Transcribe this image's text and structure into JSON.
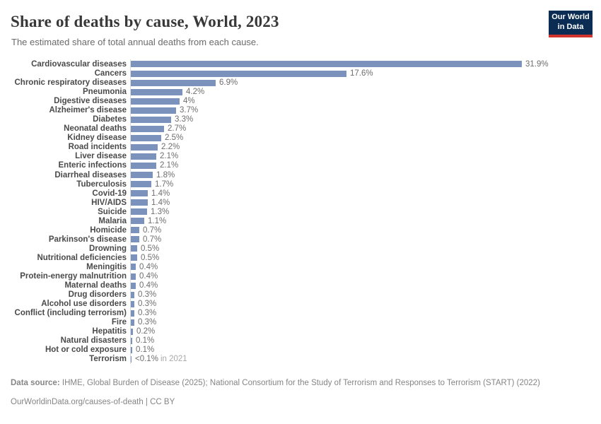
{
  "header": {
    "title": "Share of deaths by cause, World, 2023",
    "subtitle": "The estimated share of total annual deaths from each cause.",
    "logo": {
      "line1": "Our World",
      "line2": "in Data"
    }
  },
  "chart_data": {
    "type": "bar",
    "orientation": "horizontal",
    "title": "Share of deaths by cause, World, 2023",
    "xlabel": "",
    "ylabel": "",
    "unit": "%",
    "xlim": [
      0,
      31.9
    ],
    "grid": false,
    "legend": false,
    "bar_color": "#7b93bc",
    "categories": [
      "Cardiovascular diseases",
      "Cancers",
      "Chronic respiratory diseases",
      "Pneumonia",
      "Digestive diseases",
      "Alzheimer's disease",
      "Diabetes",
      "Neonatal deaths",
      "Kidney disease",
      "Road incidents",
      "Liver disease",
      "Enteric infections",
      "Diarrheal diseases",
      "Tuberculosis",
      "Covid-19",
      "HIV/AIDS",
      "Suicide",
      "Malaria",
      "Homicide",
      "Parkinson's disease",
      "Drowning",
      "Nutritional deficiencies",
      "Meningitis",
      "Protein-energy malnutrition",
      "Maternal deaths",
      "Drug disorders",
      "Alcohol use disorders",
      "Conflict (including terrorism)",
      "Fire",
      "Hepatitis",
      "Natural disasters",
      "Hot or cold exposure",
      "Terrorism"
    ],
    "values": [
      31.9,
      17.6,
      6.9,
      4.2,
      4,
      3.7,
      3.3,
      2.7,
      2.5,
      2.2,
      2.1,
      2.1,
      1.8,
      1.7,
      1.4,
      1.4,
      1.3,
      1.1,
      0.7,
      0.7,
      0.5,
      0.5,
      0.4,
      0.4,
      0.4,
      0.3,
      0.3,
      0.3,
      0.3,
      0.2,
      0.1,
      0.1,
      0.05
    ],
    "value_labels": [
      "31.9%",
      "17.6%",
      "6.9%",
      "4.2%",
      "4%",
      "3.7%",
      "3.3%",
      "2.7%",
      "2.5%",
      "2.2%",
      "2.1%",
      "2.1%",
      "1.8%",
      "1.7%",
      "1.4%",
      "1.4%",
      "1.3%",
      "1.1%",
      "0.7%",
      "0.7%",
      "0.5%",
      "0.5%",
      "0.4%",
      "0.4%",
      "0.4%",
      "0.3%",
      "0.3%",
      "0.3%",
      "0.3%",
      "0.2%",
      "0.1%",
      "0.1%",
      "<0.1%"
    ],
    "value_suffixes": [
      "",
      "",
      "",
      "",
      "",
      "",
      "",
      "",
      "",
      "",
      "",
      "",
      "",
      "",
      "",
      "",
      "",
      "",
      "",
      "",
      "",
      "",
      "",
      "",
      "",
      "",
      "",
      "",
      "",
      "",
      "",
      "",
      "in 2021"
    ]
  },
  "footer": {
    "source_label": "Data source:",
    "source_text": "IHME, Global Burden of Disease (2025); National Consortium for the Study of Terrorism and Responses to Terrorism (START) (2022)",
    "attribution": "OurWorldinData.org/causes-of-death | CC BY"
  },
  "colors": {
    "bar": "#7b93bc",
    "axis_line": "#dcdcdc",
    "category_label": "#4a4a4a",
    "value_label": "#6e6e6e",
    "suffix_label": "#a9a9a9",
    "logo_navy": "#0c2d53",
    "logo_red": "#d0342c"
  }
}
